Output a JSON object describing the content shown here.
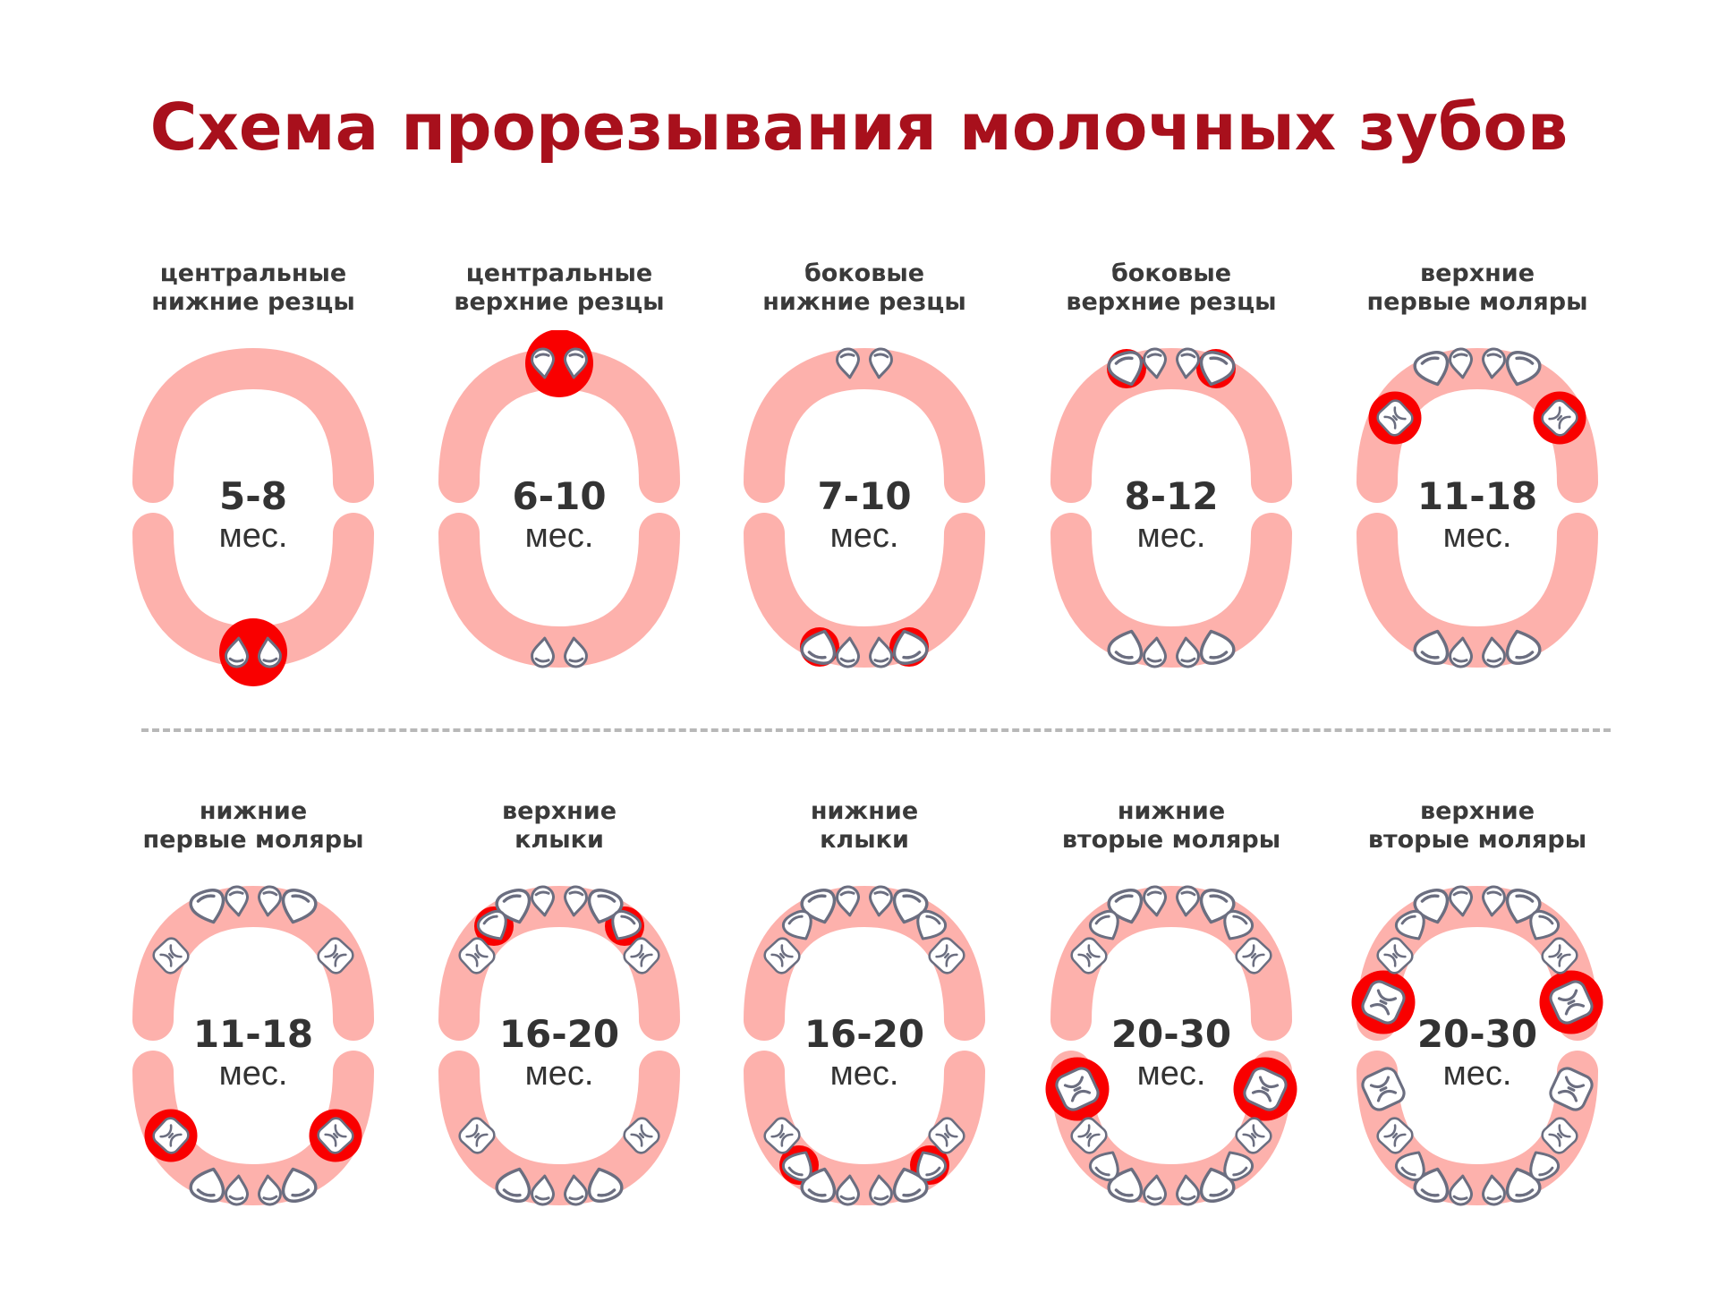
{
  "title": "Схема прорезывания молочных зубов",
  "colors": {
    "title": "#a8101c",
    "gum": "#fdb1ac",
    "highlight": "#f90000",
    "tooth_outline": "#6b6e80",
    "text": "#333333"
  },
  "panels": [
    {
      "line1": "центральные",
      "line2": "нижние резцы",
      "months": "5-8",
      "unit": "мес."
    },
    {
      "line1": "центральные",
      "line2": "верхние резцы",
      "months": "6-10",
      "unit": "мес."
    },
    {
      "line1": "боковые",
      "line2": "нижние резцы",
      "months": "7-10",
      "unit": "мес."
    },
    {
      "line1": "боковые",
      "line2": "верхние резцы",
      "months": "8-12",
      "unit": "мес."
    },
    {
      "line1": "верхние",
      "line2": "первые моляры",
      "months": "11-18",
      "unit": "мес."
    },
    {
      "line1": "нижние",
      "line2": "первые моляры",
      "months": "11-18",
      "unit": "мес."
    },
    {
      "line1": "верхние",
      "line2": "клыки",
      "months": "16-20",
      "unit": "мес."
    },
    {
      "line1": "нижние",
      "line2": "клыки",
      "months": "16-20",
      "unit": "мес."
    },
    {
      "line1": "нижние",
      "line2": "вторые моляры",
      "months": "20-30",
      "unit": "мес."
    },
    {
      "line1": "верхние",
      "line2": "вторые моляры",
      "months": "20-30",
      "unit": "мес."
    }
  ]
}
